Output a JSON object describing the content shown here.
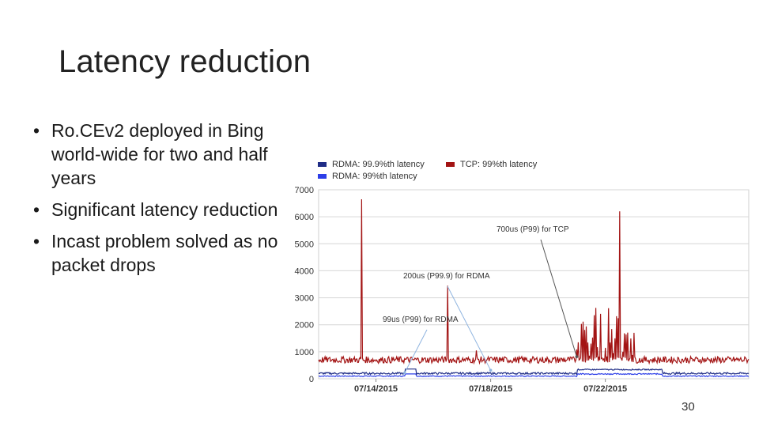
{
  "slide": {
    "title": "Latency reduction",
    "bullets": [
      "Ro.CEv2 deployed in Bing world-wide for two and half years",
      "Significant latency reduction",
      "Incast problem solved as no packet drops"
    ],
    "bullet_glyph": "•",
    "page_number": "30"
  },
  "chart_data": {
    "type": "line",
    "legend": [
      {
        "name": "RDMA: 99.9%th latency",
        "color": "#1f2d86"
      },
      {
        "name": "RDMA: 99%th latency",
        "color": "#2c3ee8"
      },
      {
        "name": "TCP: 99%th latency",
        "color": "#a31414"
      }
    ],
    "legend_placement": "top",
    "ylim": [
      0,
      7000
    ],
    "yticks": [
      0,
      1000,
      2000,
      3000,
      4000,
      5000,
      6000,
      7000
    ],
    "xticks": [
      "07/14/2015",
      "07/18/2015",
      "07/22/2015"
    ],
    "x_range_days": [
      "07/12/2015",
      "07/27/2015"
    ],
    "grid": true,
    "series": [
      {
        "name": "TCP: 99%th latency",
        "color": "#a31414",
        "baseline": 700,
        "spikes": [
          {
            "date": "07/13/2015",
            "value": 6650
          },
          {
            "date": "07/16/2015",
            "value": 3450
          },
          {
            "date": "07/17/2015",
            "value": 1050
          },
          {
            "date": "07/22/2015",
            "value": 6200
          }
        ],
        "burst_range": [
          "07/21/2015",
          "07/23/2015"
        ],
        "burst_peak": 2700
      },
      {
        "name": "RDMA: 99.9%th latency",
        "color": "#1f2d86",
        "baseline": 200
      },
      {
        "name": "RDMA: 99%th latency",
        "color": "#2c3ee8",
        "baseline": 99
      }
    ],
    "annotations": [
      {
        "text": "700us (P99) for TCP",
        "target_date": "07/21/2015",
        "target_value": 700
      },
      {
        "text": "200us (P99.9) for RDMA",
        "target_date": "07/18/2015",
        "target_value": 200
      },
      {
        "text": "99us (P99) for RDMA",
        "target_date": "07/15/2015",
        "target_value": 99
      }
    ]
  }
}
